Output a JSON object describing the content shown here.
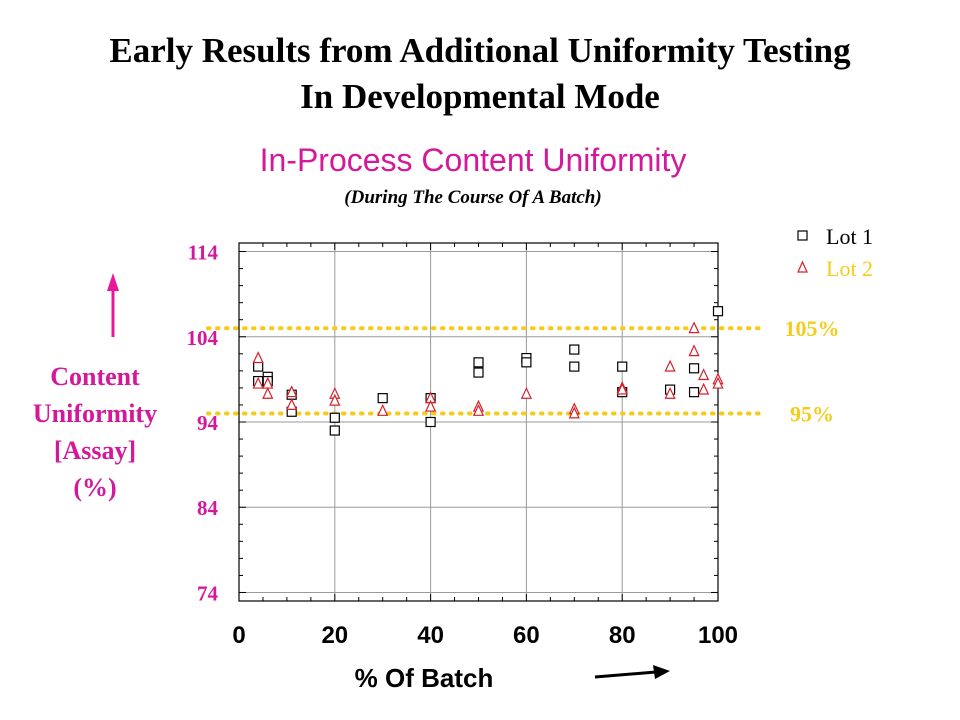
{
  "slide": {
    "title_line1": "Early Results from Additional Uniformity Testing",
    "title_line2": "In Developmental Mode",
    "subtitle": "In-Process Content Uniformity",
    "subtitle2": "(During The Course Of A Batch)",
    "y_axis_label_lines": [
      "Content",
      "Uniformity",
      "[Assay]",
      "(%)"
    ],
    "x_axis_label": "% Of Batch"
  },
  "colors": {
    "accent_magenta": "#d4189b",
    "reference_line": "#f5cc1a",
    "lot1": "#000000",
    "lot2": "#d6202a",
    "arrow_x": "#000000",
    "arrow_y": "#e8189b"
  },
  "chart_data": {
    "type": "scatter",
    "title": "In-Process Content Uniformity",
    "subtitle": "(During The Course Of A Batch)",
    "xlabel": "% Of Batch",
    "ylabel": "Content Uniformity [Assay] (%)",
    "xlim": [
      0,
      100
    ],
    "ylim": [
      73,
      115
    ],
    "x_ticks": [
      0,
      20,
      40,
      60,
      80,
      100
    ],
    "y_ticks": [
      74,
      84,
      94,
      104,
      114
    ],
    "grid": true,
    "legend_position": "top-right",
    "reference_lines": [
      {
        "y": 105,
        "label": "105%"
      },
      {
        "y": 95,
        "label": "95%"
      }
    ],
    "series": [
      {
        "name": "Lot 1",
        "marker": "square",
        "points": [
          [
            4,
            100.5
          ],
          [
            4,
            98.8
          ],
          [
            6,
            99.3
          ],
          [
            6,
            98.8
          ],
          [
            11,
            97.2
          ],
          [
            11,
            95.2
          ],
          [
            20,
            94.5
          ],
          [
            20,
            93
          ],
          [
            30,
            96.8
          ],
          [
            40,
            96.8
          ],
          [
            40,
            94
          ],
          [
            50,
            101
          ],
          [
            50,
            99.8
          ],
          [
            60,
            101.5
          ],
          [
            60,
            101
          ],
          [
            70,
            102.5
          ],
          [
            70,
            100.5
          ],
          [
            80,
            100.5
          ],
          [
            80,
            97.5
          ],
          [
            90,
            97.8
          ],
          [
            95,
            100.3
          ],
          [
            95,
            97.5
          ],
          [
            100,
            107
          ]
        ]
      },
      {
        "name": "Lot 2",
        "marker": "triangle",
        "points": [
          [
            4,
            101.5
          ],
          [
            4,
            98.5
          ],
          [
            6,
            98.5
          ],
          [
            6,
            97.3
          ],
          [
            11,
            97.5
          ],
          [
            11,
            96
          ],
          [
            20,
            97.3
          ],
          [
            20,
            96.5
          ],
          [
            30,
            95.3
          ],
          [
            40,
            96.8
          ],
          [
            40,
            95.8
          ],
          [
            50,
            95.8
          ],
          [
            50,
            95.3
          ],
          [
            60,
            97.3
          ],
          [
            70,
            95.5
          ],
          [
            70,
            95
          ],
          [
            80,
            98
          ],
          [
            80,
            97.8
          ],
          [
            90,
            100.5
          ],
          [
            90,
            97.3
          ],
          [
            95,
            105
          ],
          [
            95,
            102.3
          ],
          [
            97,
            99.5
          ],
          [
            97,
            97.8
          ],
          [
            100,
            99
          ],
          [
            100,
            98.5
          ]
        ]
      }
    ]
  }
}
